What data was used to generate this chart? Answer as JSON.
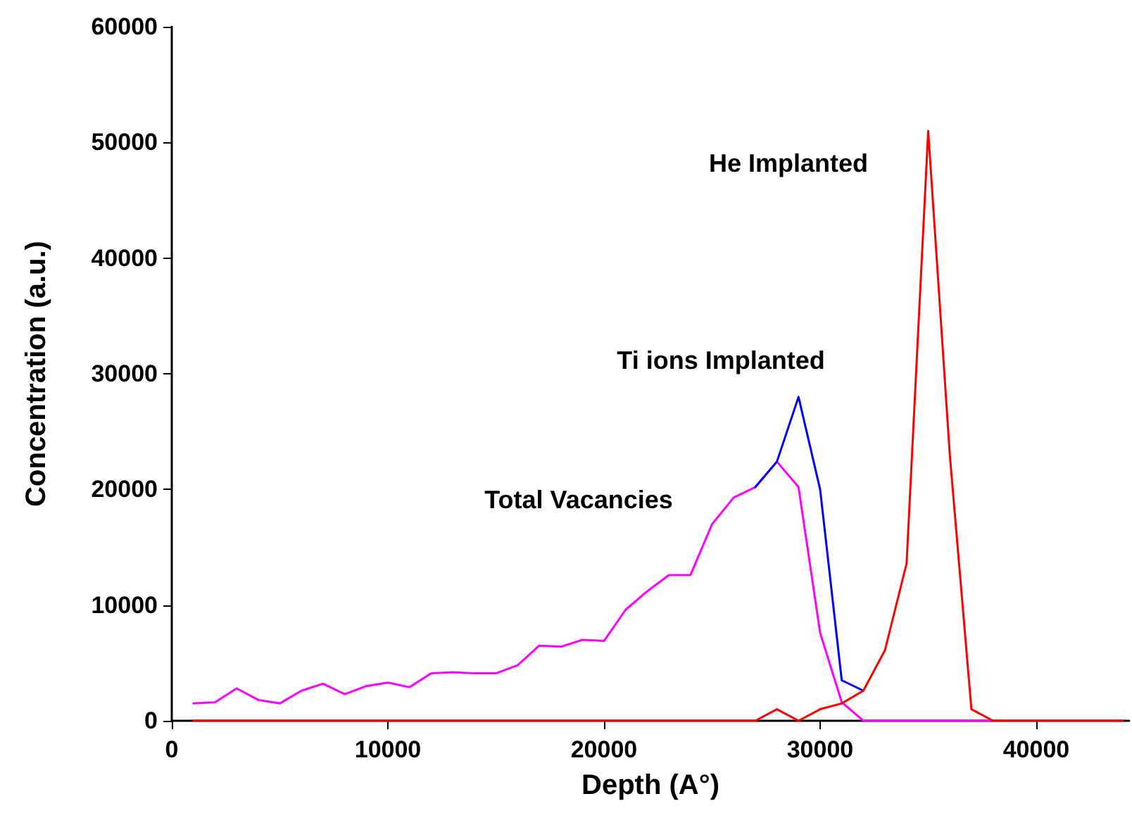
{
  "chart_data": {
    "type": "line",
    "xlabel": "Depth (A°)",
    "ylabel": "Concentration (a.u.)",
    "xlim": [
      0,
      44300
    ],
    "xticks": [
      0,
      10000,
      20000,
      30000,
      40000
    ],
    "ylim": [
      0,
      60000
    ],
    "yticks": [
      0,
      10000,
      20000,
      30000,
      40000,
      50000,
      60000
    ],
    "grid": false,
    "marker": "none",
    "line_style": "solid",
    "annotations": [
      "He Implanted",
      "Ti ions Implanted",
      "Total Vacancies"
    ],
    "series": [
      {
        "color": "#ff00ff",
        "x": [
          1000,
          2000,
          3000,
          4000,
          5000,
          6000,
          7000,
          8000,
          9000,
          10000,
          11000,
          12000,
          13000,
          14000,
          15000,
          16000,
          17000,
          18000,
          19000,
          20000,
          21000,
          22000,
          23000,
          24000,
          25000,
          26000,
          27000,
          28000,
          29000,
          30000,
          31000,
          32000,
          33000,
          34000,
          35000,
          36000,
          37000,
          38000
        ],
        "values": [
          1500,
          1600,
          2800,
          1800,
          1500,
          2600,
          3200,
          2300,
          3000,
          3300,
          2900,
          4100,
          4200,
          4100,
          4100,
          4800,
          6500,
          6400,
          7000,
          6900,
          9600,
          11200,
          12600,
          12600,
          17000,
          19300,
          20200,
          22400,
          20200,
          7600,
          1600,
          0,
          0,
          0,
          0,
          0,
          0,
          0
        ]
      },
      {
        "color": "#0000ff",
        "x": [
          27000,
          28000,
          29000,
          30000,
          31000,
          32000
        ],
        "values": [
          20200,
          22400,
          28000,
          20000,
          3500,
          2600
        ]
      },
      {
        "color": "#ff0000",
        "x": [
          1000,
          2000,
          3000,
          4000,
          5000,
          6000,
          7000,
          8000,
          9000,
          10000,
          11000,
          12000,
          13000,
          14000,
          15000,
          16000,
          17000,
          18000,
          19000,
          20000,
          21000,
          22000,
          23000,
          24000,
          25000,
          26000,
          27000,
          28000,
          29000,
          30000,
          31000,
          32000,
          33000,
          34000,
          35000,
          36000,
          37000,
          38000,
          39000,
          40000,
          41000,
          42000,
          43000,
          44000
        ],
        "values": [
          0,
          0,
          0,
          0,
          0,
          0,
          0,
          0,
          0,
          0,
          0,
          0,
          0,
          0,
          0,
          0,
          0,
          0,
          0,
          0,
          0,
          0,
          0,
          0,
          0,
          0,
          0,
          1000,
          0,
          1000,
          1500,
          2600,
          6100,
          13600,
          51000,
          23000,
          1000,
          0,
          0,
          0,
          0,
          0,
          0,
          0
        ]
      }
    ]
  }
}
